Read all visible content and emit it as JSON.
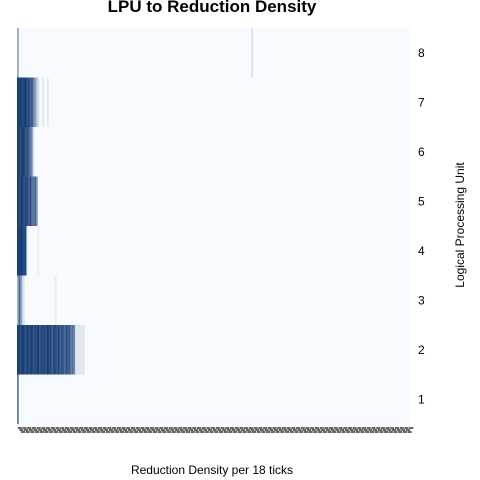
{
  "chart_data": {
    "type": "heatmap",
    "title": "LPU to Reduction Density",
    "xlabel": "Reduction Density per 18 ticks",
    "ylabel": "Logical Processing Unit",
    "y_categories": [
      "1",
      "2",
      "3",
      "4",
      "5",
      "6",
      "7",
      "8"
    ],
    "x_range": [
      0,
      250
    ],
    "color_scale": {
      "low": "#f7fbff",
      "high": "#08306b"
    },
    "rows": [
      {
        "lpu": "1",
        "cells": [
          {
            "x": 1,
            "v": 0.6
          }
        ]
      },
      {
        "lpu": "2",
        "cells": [
          {
            "x": 1,
            "v": 0.95
          },
          {
            "x": 2,
            "v": 0.9
          },
          {
            "x": 3,
            "v": 0.85
          },
          {
            "x": 4,
            "v": 0.95
          },
          {
            "x": 5,
            "v": 0.9
          },
          {
            "x": 6,
            "v": 0.8
          },
          {
            "x": 7,
            "v": 0.95
          },
          {
            "x": 8,
            "v": 0.85
          },
          {
            "x": 9,
            "v": 0.9
          },
          {
            "x": 10,
            "v": 0.95
          },
          {
            "x": 11,
            "v": 0.8
          },
          {
            "x": 12,
            "v": 0.9
          },
          {
            "x": 13,
            "v": 0.85
          },
          {
            "x": 14,
            "v": 0.95
          },
          {
            "x": 15,
            "v": 0.8
          },
          {
            "x": 16,
            "v": 0.9
          },
          {
            "x": 17,
            "v": 0.85
          },
          {
            "x": 18,
            "v": 0.9
          },
          {
            "x": 19,
            "v": 0.8
          },
          {
            "x": 20,
            "v": 0.95
          },
          {
            "x": 21,
            "v": 0.85
          },
          {
            "x": 22,
            "v": 0.9
          },
          {
            "x": 23,
            "v": 0.75
          },
          {
            "x": 24,
            "v": 0.9
          },
          {
            "x": 25,
            "v": 0.85
          },
          {
            "x": 26,
            "v": 0.8
          },
          {
            "x": 27,
            "v": 0.9
          },
          {
            "x": 28,
            "v": 0.75
          },
          {
            "x": 29,
            "v": 0.85
          },
          {
            "x": 30,
            "v": 0.8
          },
          {
            "x": 31,
            "v": 0.7
          },
          {
            "x": 32,
            "v": 0.85
          },
          {
            "x": 33,
            "v": 0.75
          },
          {
            "x": 34,
            "v": 0.8
          },
          {
            "x": 35,
            "v": 0.6
          },
          {
            "x": 36,
            "v": 0.7
          },
          {
            "x": 37,
            "v": 0.55
          },
          {
            "x": 38,
            "v": 0.1
          },
          {
            "x": 39,
            "v": 0.1
          },
          {
            "x": 40,
            "v": 0.1
          },
          {
            "x": 41,
            "v": 0.1
          },
          {
            "x": 42,
            "v": 0.1
          },
          {
            "x": 43,
            "v": 0.1
          }
        ]
      },
      {
        "lpu": "3",
        "cells": [
          {
            "x": 1,
            "v": 0.35
          },
          {
            "x": 2,
            "v": 0.7
          },
          {
            "x": 3,
            "v": 0.5
          },
          {
            "x": 4,
            "v": 0.2
          },
          {
            "x": 5,
            "v": 0.08
          },
          {
            "x": 25,
            "v": 0.06
          }
        ]
      },
      {
        "lpu": "4",
        "cells": [
          {
            "x": 1,
            "v": 0.95
          },
          {
            "x": 2,
            "v": 0.9
          },
          {
            "x": 3,
            "v": 0.95
          },
          {
            "x": 4,
            "v": 0.9
          },
          {
            "x": 5,
            "v": 0.85
          },
          {
            "x": 6,
            "v": 0.9
          },
          {
            "x": 7,
            "v": 0.06
          },
          {
            "x": 14,
            "v": 0.06
          }
        ]
      },
      {
        "lpu": "5",
        "cells": [
          {
            "x": 1,
            "v": 0.95
          },
          {
            "x": 2,
            "v": 0.85
          },
          {
            "x": 3,
            "v": 0.9
          },
          {
            "x": 4,
            "v": 0.95
          },
          {
            "x": 5,
            "v": 0.8
          },
          {
            "x": 6,
            "v": 0.9
          },
          {
            "x": 7,
            "v": 0.85
          },
          {
            "x": 8,
            "v": 0.75
          },
          {
            "x": 9,
            "v": 0.85
          },
          {
            "x": 10,
            "v": 0.7
          },
          {
            "x": 11,
            "v": 0.6
          },
          {
            "x": 12,
            "v": 0.75
          },
          {
            "x": 13,
            "v": 0.5
          }
        ]
      },
      {
        "lpu": "6",
        "cells": [
          {
            "x": 1,
            "v": 0.95
          },
          {
            "x": 2,
            "v": 0.9
          },
          {
            "x": 3,
            "v": 0.85
          },
          {
            "x": 4,
            "v": 0.95
          },
          {
            "x": 5,
            "v": 0.9
          },
          {
            "x": 6,
            "v": 0.8
          },
          {
            "x": 7,
            "v": 0.85
          },
          {
            "x": 8,
            "v": 0.75
          },
          {
            "x": 9,
            "v": 0.65
          },
          {
            "x": 10,
            "v": 0.55
          },
          {
            "x": 11,
            "v": 0.1
          }
        ]
      },
      {
        "lpu": "7",
        "cells": [
          {
            "x": 1,
            "v": 0.95
          },
          {
            "x": 2,
            "v": 0.9
          },
          {
            "x": 3,
            "v": 0.95
          },
          {
            "x": 4,
            "v": 0.85
          },
          {
            "x": 5,
            "v": 0.9
          },
          {
            "x": 6,
            "v": 0.95
          },
          {
            "x": 7,
            "v": 0.8
          },
          {
            "x": 8,
            "v": 0.9
          },
          {
            "x": 9,
            "v": 0.75
          },
          {
            "x": 10,
            "v": 0.8
          },
          {
            "x": 11,
            "v": 0.6
          },
          {
            "x": 12,
            "v": 0.45
          },
          {
            "x": 13,
            "v": 0.3
          },
          {
            "x": 14,
            "v": 0.12
          },
          {
            "x": 17,
            "v": 0.1
          },
          {
            "x": 20,
            "v": 0.08
          }
        ]
      },
      {
        "lpu": "8",
        "cells": [
          {
            "x": 1,
            "v": 0.4
          },
          {
            "x": 150,
            "v": 0.12
          }
        ]
      }
    ]
  }
}
